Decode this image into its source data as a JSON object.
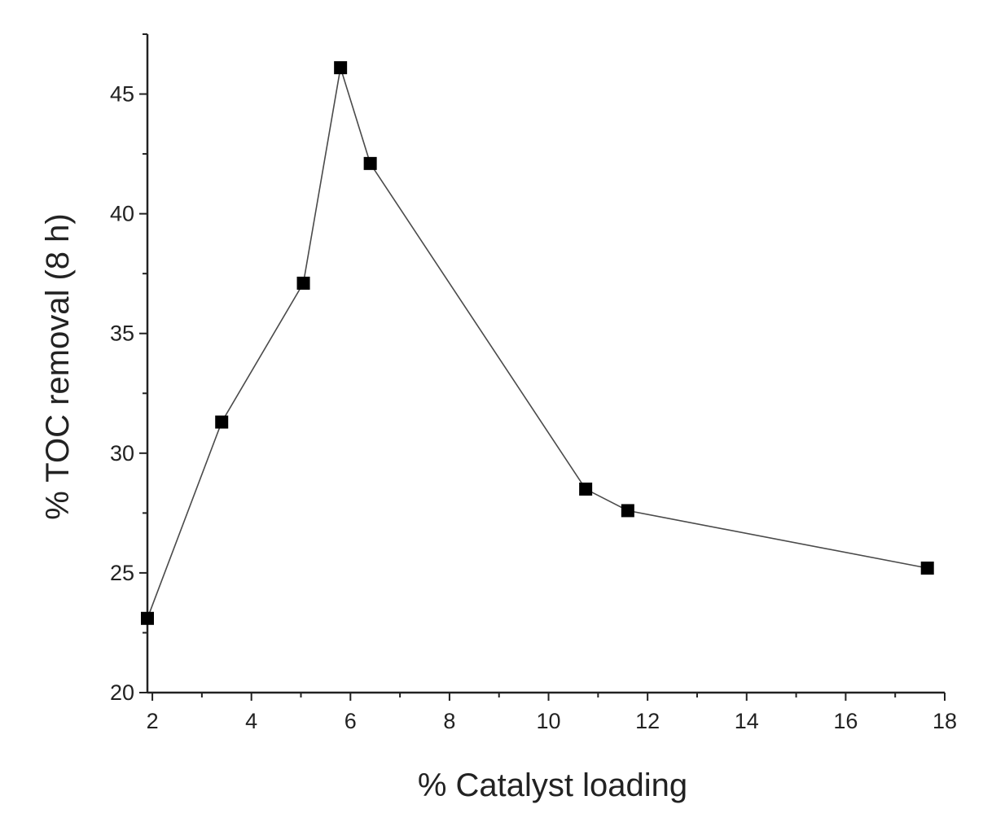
{
  "chart_data": {
    "type": "line",
    "title": "",
    "xlabel": "% Catalyst loading",
    "ylabel": "% TOC removal (8 h)",
    "xlim": [
      1.9,
      18
    ],
    "ylim": [
      20,
      47.5
    ],
    "x_ticks": [
      2,
      4,
      6,
      8,
      10,
      12,
      14,
      16,
      18
    ],
    "y_ticks": [
      20,
      25,
      30,
      35,
      40,
      45
    ],
    "x_minor_step": 1,
    "y_minor_step": 2.5,
    "grid": false,
    "legend": "none",
    "marker": "square",
    "series": [
      {
        "x": [
          1.9,
          3.4,
          5.05,
          5.8,
          6.4,
          10.75,
          11.6,
          17.65
        ],
        "y": [
          23.1,
          31.3,
          37.1,
          46.1,
          42.1,
          28.5,
          27.6,
          25.2
        ]
      }
    ]
  }
}
